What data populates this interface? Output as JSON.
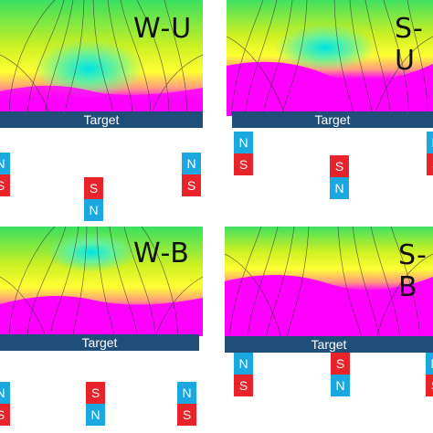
{
  "target_label": "Target",
  "colors": {
    "north": "#1ba8e0",
    "south": "#e8232a",
    "target": "#1f4e79",
    "field_high": "#ff00ff",
    "field_mid": "#ffff33",
    "field_low": "#00e5e5"
  },
  "panels": [
    {
      "key": "wu",
      "title": "W-U",
      "magnets": [
        {
          "top": "N",
          "bottom": "S"
        },
        {
          "top": "S",
          "bottom": "N"
        },
        {
          "top": "N",
          "bottom": "S"
        }
      ]
    },
    {
      "key": "su",
      "title": "S-U",
      "magnets": [
        {
          "top": "N",
          "bottom": "S"
        },
        {
          "top": "S",
          "bottom": "N"
        },
        {
          "top": "N",
          "bottom": "S"
        }
      ]
    },
    {
      "key": "wb",
      "title": "W-B",
      "magnets": [
        {
          "top": "N",
          "bottom": "S"
        },
        {
          "top": "S",
          "bottom": "N"
        },
        {
          "top": "N",
          "bottom": "S"
        }
      ]
    },
    {
      "key": "sb",
      "title": "S-B",
      "magnets": [
        {
          "top": "N",
          "bottom": "S"
        },
        {
          "top": "S",
          "bottom": "N"
        },
        {
          "top": "N",
          "bottom": "S"
        }
      ]
    }
  ]
}
